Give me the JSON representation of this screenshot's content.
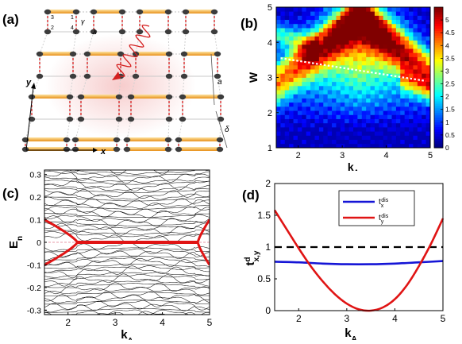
{
  "panels": {
    "a": {
      "label": "(a)",
      "axis_x": "x",
      "axis_y": "y",
      "site_labels": [
        "3",
        "1",
        "2",
        "4"
      ],
      "hop_labels": [
        "γ",
        "λ"
      ],
      "dim_labels": [
        "a",
        "δ"
      ],
      "colors": {
        "orange_bond": "#f4a62a",
        "red_bond": "#d82a2a",
        "site": "#3c3c3c",
        "glow": "#f6c9c9"
      }
    },
    "b": {
      "label": "(b)",
      "xlabel": "k",
      "xlabel_sub": "A",
      "ylabel": "W",
      "x_ticks": [
        "2",
        "3",
        "4",
        "5"
      ],
      "y_ticks": [
        "1",
        "2",
        "3",
        "4",
        "5"
      ],
      "colorbar_ticks": [
        "0",
        "0.5",
        "1",
        "1.5",
        "2",
        "2.5",
        "3",
        "3.5",
        "4",
        "4.5",
        "5"
      ],
      "colormap": "jet"
    },
    "c": {
      "label": "(c)",
      "ylabel": "E",
      "ylabel_sub": "n",
      "xlabel": "k",
      "xlabel_sub": "A",
      "x_ticks": [
        "2",
        "3",
        "4",
        "5"
      ],
      "y_ticks": [
        "0.3",
        "0.2",
        "0.1",
        "0",
        "-0.1",
        "-0.2",
        "-0.3"
      ]
    },
    "d": {
      "label": "(d)",
      "xlabel": "k",
      "xlabel_sub": "A",
      "ylabel": "t",
      "ylabel_sup": "d",
      "ylabel_sub": "x,y",
      "x_ticks": [
        "2",
        "3",
        "4",
        "5"
      ],
      "y_ticks": [
        "0",
        "0.5",
        "1",
        "1.5",
        "2"
      ],
      "legend": [
        {
          "t": "t",
          "sub": "x",
          "sup": "dis",
          "color": "#1515d6"
        },
        {
          "t": "t",
          "sub": "y",
          "sup": "dis",
          "color": "#e01414"
        }
      ]
    }
  },
  "chart_data": [
    {
      "panel": "b",
      "type": "heatmap",
      "xlabel": "kA",
      "ylabel": "W",
      "xlim": [
        1.5,
        5
      ],
      "ylim": [
        1,
        5
      ],
      "zlim": [
        0,
        5.5
      ],
      "overlay_line": {
        "style": "dotted white",
        "x": [
          1.6,
          4.9
        ],
        "y": [
          3.55,
          2.9
        ]
      }
    },
    {
      "panel": "c",
      "type": "line",
      "xlabel": "kA",
      "ylabel": "En",
      "xlim": [
        1.5,
        5
      ],
      "ylim": [
        -0.32,
        0.32
      ],
      "zero_modes_x_range": [
        2.2,
        4.75
      ]
    },
    {
      "panel": "d",
      "type": "line",
      "xlabel": "kA",
      "ylabel": "t^d_{x,y}",
      "xlim": [
        1.5,
        5
      ],
      "ylim": [
        0,
        2
      ],
      "reference_line": {
        "y": 1,
        "style": "dashed black"
      },
      "series": [
        {
          "name": "t_x^dis",
          "color": "#1515d6",
          "x": [
            1.5,
            2.0,
            2.5,
            3.0,
            3.5,
            4.0,
            4.5,
            5.0
          ],
          "y": [
            0.77,
            0.76,
            0.74,
            0.73,
            0.73,
            0.74,
            0.76,
            0.78
          ]
        },
        {
          "name": "t_y^dis",
          "color": "#e01414",
          "x": [
            1.5,
            1.75,
            2.0,
            2.25,
            2.5,
            2.75,
            3.0,
            3.25,
            3.5,
            3.75,
            4.0,
            4.25,
            4.5,
            4.75,
            5.0
          ],
          "y": [
            1.58,
            1.28,
            0.98,
            0.7,
            0.46,
            0.26,
            0.11,
            0.02,
            0.0,
            0.05,
            0.18,
            0.4,
            0.7,
            1.05,
            1.45
          ]
        }
      ]
    }
  ]
}
